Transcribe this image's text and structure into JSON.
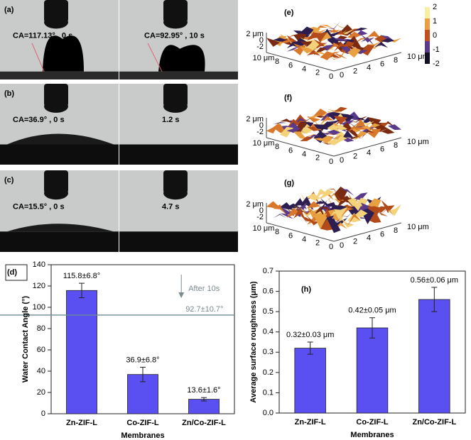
{
  "photos": [
    {
      "label": "(a)",
      "left": "CA=117.13° , 0 s",
      "right": "CA=92.95° , 10 s"
    },
    {
      "label": "(b)",
      "left": "CA=36.9° , 0 s",
      "right": "1.2 s"
    },
    {
      "label": "(c)",
      "left": "CA=15.5° , 0 s",
      "right": "4.7 s"
    }
  ],
  "surfaces": [
    {
      "label": "(e)",
      "z_ticks": [
        "2 μm",
        "0",
        "-2"
      ],
      "x_ticks": [
        "10 μm",
        "8",
        "6",
        "4",
        "2",
        "0"
      ],
      "y_ticks": [
        "10 μm",
        "8",
        "6",
        "4",
        "2",
        "0"
      ],
      "colorbar_ticks": [
        "2",
        "1",
        "0",
        "-1",
        "-2"
      ]
    },
    {
      "label": "(f)",
      "z_ticks": [
        "2 μm",
        "0",
        "-2"
      ],
      "x_ticks": [
        "10 μm",
        "8",
        "6",
        "4",
        "2",
        "0"
      ],
      "y_ticks": [
        "10 μm",
        "8",
        "6",
        "4",
        "2",
        "0"
      ]
    },
    {
      "label": "(g)",
      "z_ticks": [
        "2 μm",
        "0",
        "-2"
      ],
      "x_ticks": [
        "10 μm",
        "8",
        "6",
        "4",
        "2",
        "0"
      ],
      "y_ticks": [
        "10 μm",
        "8",
        "6",
        "4",
        "2",
        "0"
      ]
    }
  ],
  "chart_data": [
    {
      "type": "bar",
      "panel": "(d)",
      "x_label": "Membranes",
      "y_label": "Water Contact Angle (°)",
      "categories": [
        "Zn-ZIF-L",
        "Co-ZIF-L",
        "Zn/Co-ZIF-L"
      ],
      "values": [
        115.8,
        36.9,
        13.6
      ],
      "errors": [
        6.8,
        6.8,
        1.6
      ],
      "value_labels": [
        "115.8±6.8°",
        "36.9±6.8°",
        "13.6±1.6°"
      ],
      "color": "#5a4ff0",
      "ylim": [
        0,
        140
      ],
      "yticks": [
        0,
        20,
        40,
        60,
        80,
        100,
        120,
        140
      ],
      "reference": {
        "value": 92.7,
        "label": "92.7±10.7°",
        "annotation": "After 10s"
      }
    },
    {
      "type": "bar",
      "panel": "(h)",
      "x_label": "Membranes",
      "y_label": "Average surface roughness (μm)",
      "categories": [
        "Zn-ZIF-L",
        "Co-ZIF-L",
        "Zn/Co-ZIF-L"
      ],
      "values": [
        0.32,
        0.42,
        0.56
      ],
      "errors": [
        0.03,
        0.05,
        0.06
      ],
      "value_labels": [
        "0.32±0.03 μm",
        "0.42±0.05 μm",
        "0.56±0.06 μm"
      ],
      "color": "#5a4ff0",
      "ylim": [
        0,
        0.7
      ],
      "yticks": [
        {
          "value": 0,
          "label": "0.0"
        },
        0.1,
        0.2,
        0.3,
        0.4,
        0.5,
        0.6,
        0.7
      ]
    }
  ]
}
